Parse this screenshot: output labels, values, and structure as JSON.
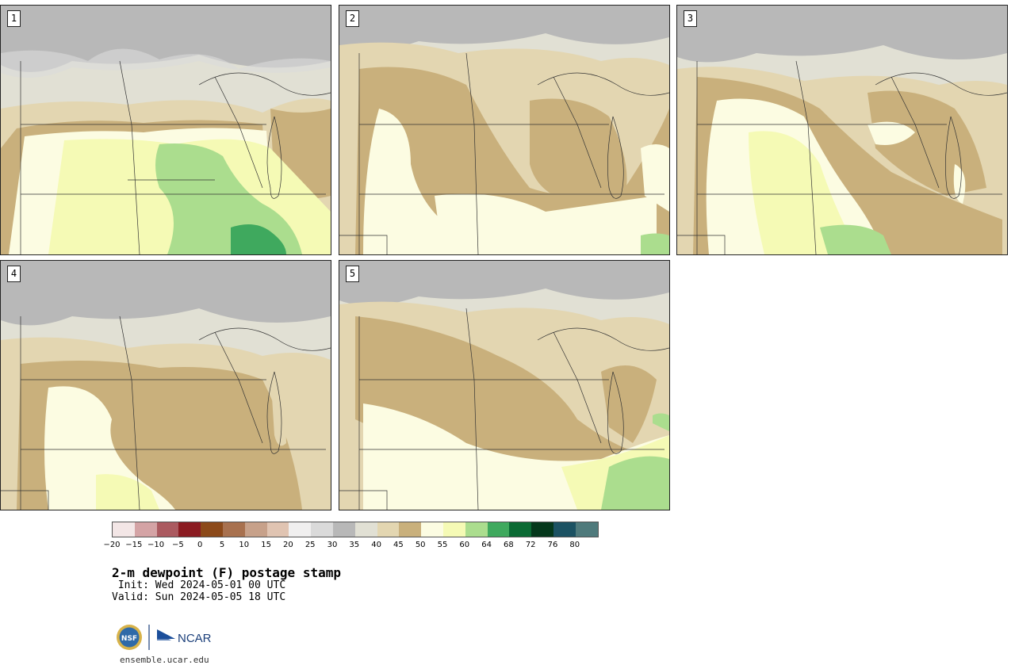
{
  "panels": [
    {
      "label": "1"
    },
    {
      "label": "2"
    },
    {
      "label": "3"
    },
    {
      "label": "4"
    },
    {
      "label": "5"
    }
  ],
  "colorbar": {
    "colors": [
      "#f3e6e6",
      "#d4a3a5",
      "#ab5a60",
      "#8b1c22",
      "#8c4a1a",
      "#a8714f",
      "#c7a18a",
      "#e0c4b2",
      "#f0efef",
      "#dadada",
      "#b8b8b8",
      "#e1e0d4",
      "#e3d6b1",
      "#c9b07c",
      "#fcfce2",
      "#f5fab5",
      "#abdd8e",
      "#3fa95e",
      "#0b6a34",
      "#05381c",
      "#1c5263",
      "#4f7a7c"
    ],
    "tick_labels": [
      "−20",
      "−15",
      "−10",
      "−5",
      "0",
      "5",
      "10",
      "15",
      "20",
      "25",
      "30",
      "35",
      "40",
      "45",
      "50",
      "55",
      "60",
      "64",
      "68",
      "72",
      "76",
      "80"
    ]
  },
  "title": "2-m dewpoint (F) postage stamp",
  "init": " Init: Wed 2024-05-01 00 UTC",
  "valid": "Valid: Sun 2024-05-05 18 UTC",
  "logo": {
    "nsf": "NSF",
    "ncar": "NCAR"
  },
  "url": "ensemble.ucar.edu"
}
